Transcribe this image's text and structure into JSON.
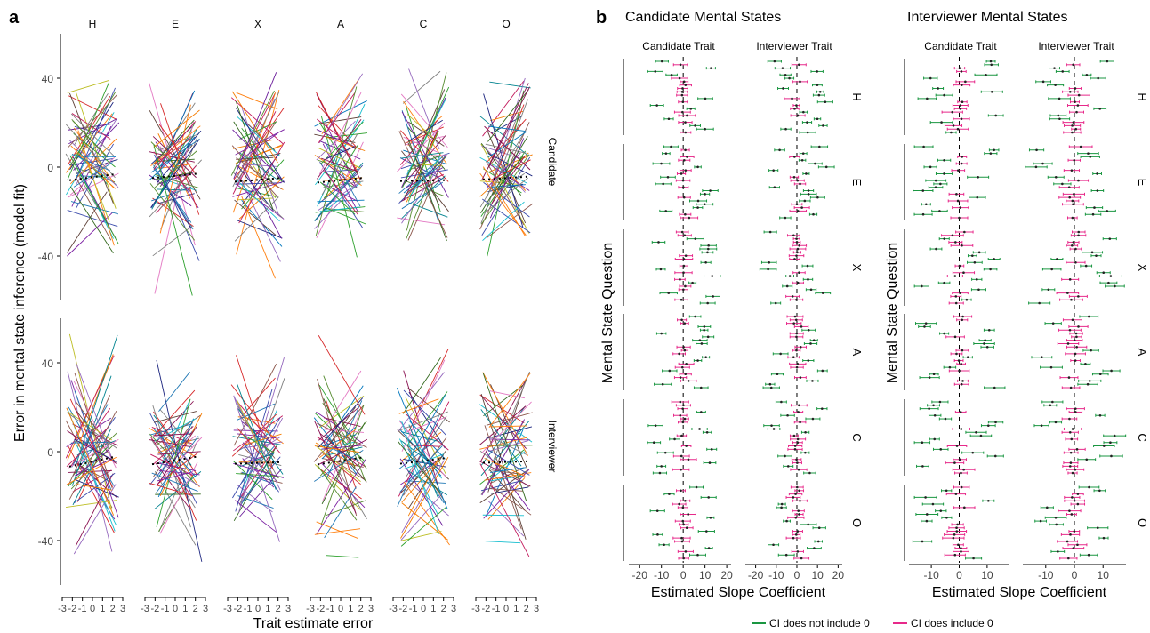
{
  "panel_a": {
    "label": "a",
    "ylabel": "Error in mental state inference (model fit)",
    "xlabel": "Trait estimate error",
    "traits": [
      "H",
      "E",
      "X",
      "A",
      "C",
      "O"
    ],
    "rows": [
      "Candidate",
      "Interviewer"
    ],
    "y_ticks": [
      "40",
      "0",
      "-40"
    ],
    "x_ticks": [
      "-3",
      "-2",
      "-1",
      "0",
      "1",
      "2",
      "3"
    ]
  },
  "panel_b": {
    "label": "b",
    "groups": [
      {
        "title": "Candidate Mental States",
        "subtitles": [
          "Candidate Trait",
          "Interviewer Trait"
        ]
      },
      {
        "title": "Interviewer Mental States",
        "subtitles": [
          "Candidate Trait",
          "Interviewer Trait"
        ]
      }
    ],
    "ylabel": "Mental State Question",
    "xlabel": "Estimated Slope Coefficient",
    "row_labels": [
      "H",
      "E",
      "X",
      "A",
      "C",
      "O"
    ],
    "x_ticks_left": [
      "-20",
      "-10",
      "0",
      "10",
      "20"
    ],
    "x_ticks_right": [
      "-10",
      "0",
      "10"
    ]
  },
  "legend": {
    "items": [
      {
        "label": "CI does not include 0",
        "color": "#1a9641"
      },
      {
        "label": "CI does include 0",
        "color": "#e7298a"
      }
    ]
  },
  "chart_data": [
    {
      "type": "line",
      "title": "",
      "xlabel": "Trait estimate error",
      "ylabel": "Error in mental state inference (model fit)",
      "facets_x": [
        "H",
        "E",
        "X",
        "A",
        "C",
        "O"
      ],
      "facets_y": [
        "Candidate",
        "Interviewer"
      ],
      "xlim": [
        -3,
        3
      ],
      "ylim": [
        -60,
        60
      ],
      "note": "many individual participant lines per facet (approx. 40-60 each), y values between about -60 and 60"
    },
    {
      "type": "scatter",
      "title": "",
      "xlabel": "Estimated Slope Coefficient",
      "ylabel": "Mental State Question",
      "facets_x": [
        "Candidate Mental States / Candidate Trait",
        "Candidate Mental States / Interviewer Trait",
        "Interviewer Mental States / Candidate Trait",
        "Interviewer Mental States / Interviewer Trait"
      ],
      "facets_y": [
        "H",
        "E",
        "X",
        "A",
        "C",
        "O"
      ],
      "xlim_left": [
        -25,
        22
      ],
      "xlim_right": [
        -18,
        18
      ],
      "series": [
        {
          "name": "CI does not include 0",
          "color": "#1a9641"
        },
        {
          "name": "CI does include 0",
          "color": "#e7298a"
        }
      ]
    }
  ]
}
